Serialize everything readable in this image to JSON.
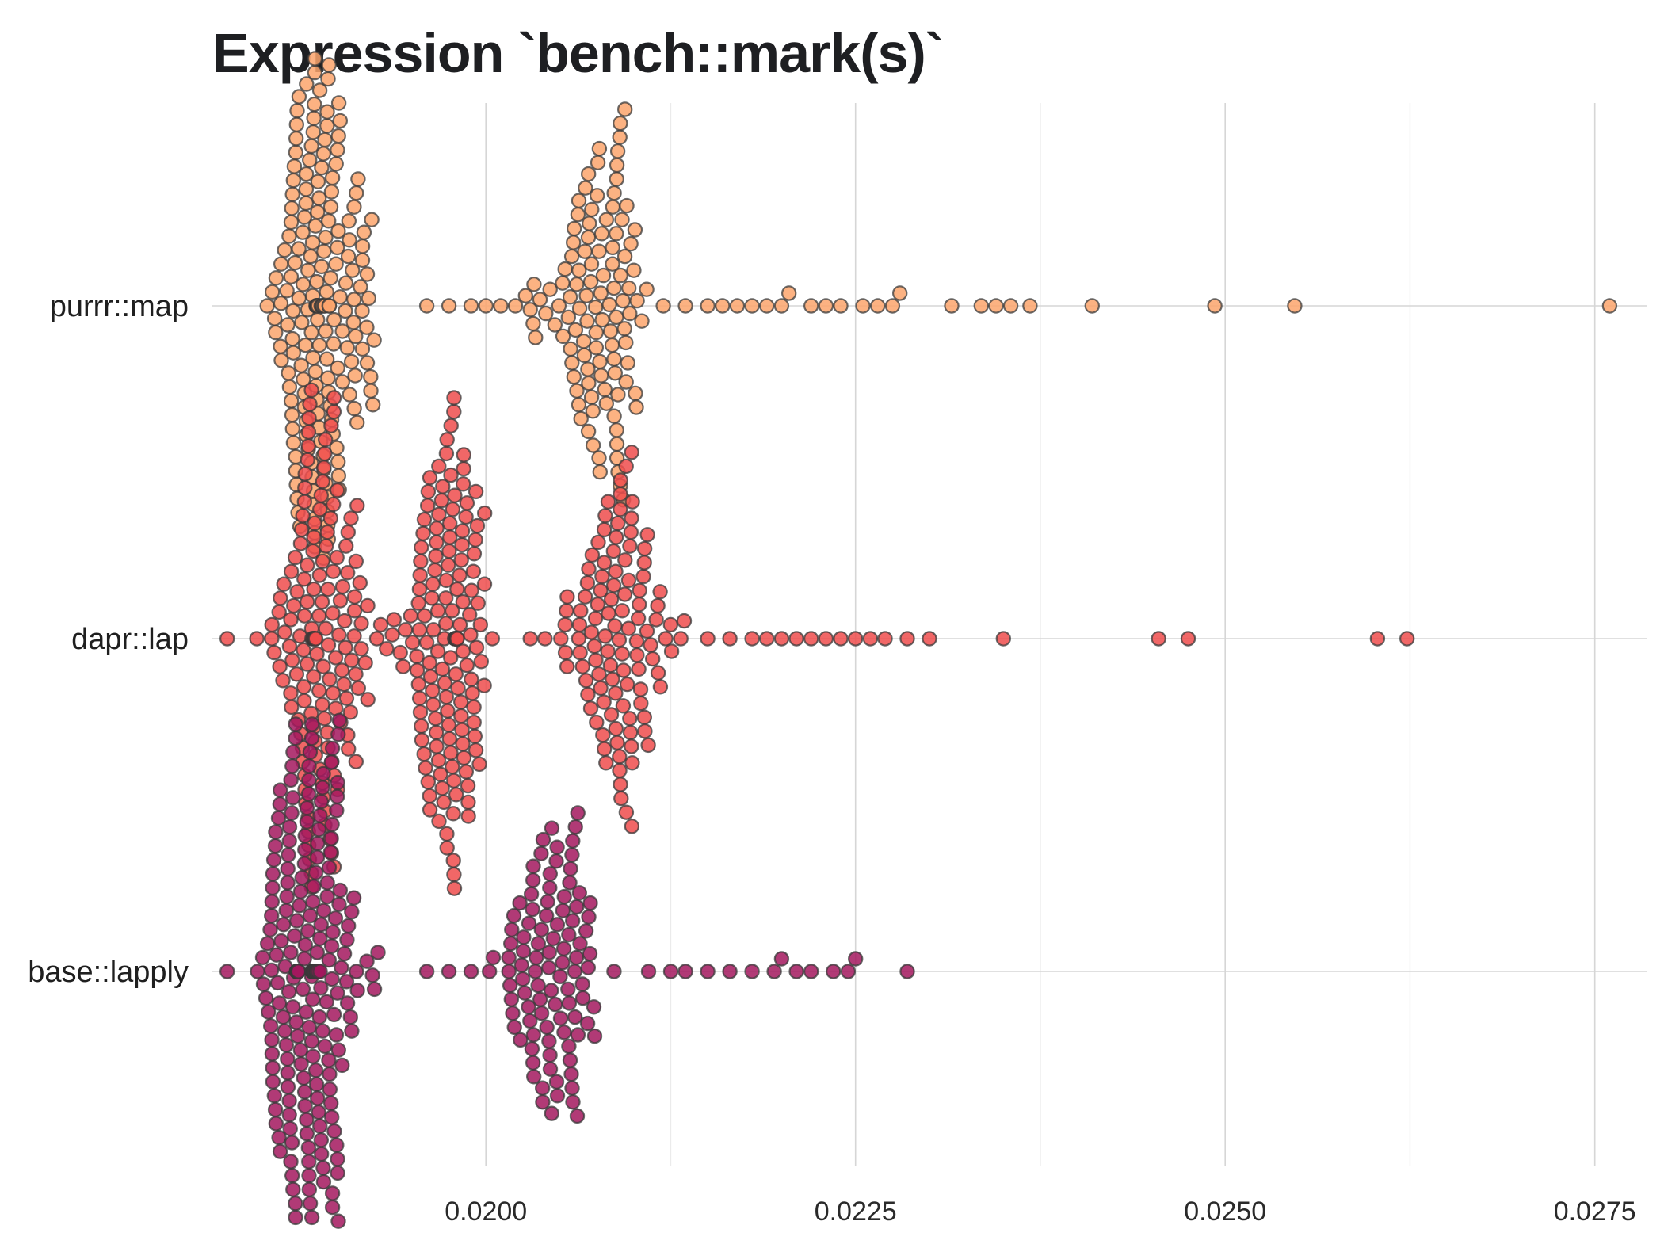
{
  "chart_data": {
    "type": "scatter",
    "subtype": "beeswarm",
    "title": "Expression `bench::mark(s)`",
    "xlabel": "",
    "ylabel": "",
    "xlim": [
      0.01815,
      0.02785
    ],
    "x_ticks": [
      0.02,
      0.0225,
      0.025,
      0.0275
    ],
    "x_tick_labels": [
      "0.0200",
      "0.0225",
      "0.0250",
      "0.0275"
    ],
    "x_minor_ticks": [
      0.01875,
      0.02125,
      0.02375,
      0.02625
    ],
    "categories": [
      "purrr::map",
      "dapr::lap",
      "base::lapply"
    ],
    "series": [
      {
        "name": "purrr::map",
        "color": "#FCA46C",
        "dense_clusters": [
          {
            "center": 0.0189,
            "spread": 0.0004,
            "count": 190
          },
          {
            "center": 0.02075,
            "spread": 0.00045,
            "count": 110
          }
        ],
        "values": [
          0.0196,
          0.01975,
          0.0199,
          0.02,
          0.0201,
          0.0202,
          0.0203,
          0.0212,
          0.02135,
          0.0215,
          0.0216,
          0.0217,
          0.0218,
          0.0219,
          0.022,
          0.02205,
          0.0222,
          0.0223,
          0.0224,
          0.02255,
          0.02265,
          0.02275,
          0.0228,
          0.02315,
          0.02335,
          0.02345,
          0.02355,
          0.02368,
          0.0241,
          0.02493,
          0.02547,
          0.0276
        ]
      },
      {
        "name": "dapr::lap",
        "color": "#EE4C4C",
        "dense_clusters": [
          {
            "center": 0.0189,
            "spread": 0.00045,
            "count": 150
          },
          {
            "center": 0.01975,
            "spread": 0.0004,
            "count": 150
          },
          {
            "center": 0.0209,
            "spread": 0.0005,
            "count": 110
          }
        ],
        "values": [
          0.01825,
          0.0203,
          0.0204,
          0.0215,
          0.02165,
          0.0218,
          0.0219,
          0.022,
          0.0221,
          0.0222,
          0.0223,
          0.0224,
          0.0225,
          0.0226,
          0.0227,
          0.02285,
          0.023,
          0.0235,
          0.02455,
          0.02475,
          0.02603,
          0.02623
        ]
      },
      {
        "name": "base::lapply",
        "color": "#A3175E",
        "dense_clusters": [
          {
            "center": 0.0188,
            "spread": 0.0004,
            "count": 220
          },
          {
            "center": 0.02045,
            "spread": 0.0004,
            "count": 100
          }
        ],
        "values": [
          0.01825,
          0.0196,
          0.01975,
          0.0199,
          0.02005,
          0.0211,
          0.02125,
          0.02135,
          0.0215,
          0.02165,
          0.0218,
          0.02195,
          0.022,
          0.0221,
          0.0222,
          0.02235,
          0.02245,
          0.0225,
          0.02285
        ]
      }
    ],
    "grid": true,
    "legend": "none"
  }
}
